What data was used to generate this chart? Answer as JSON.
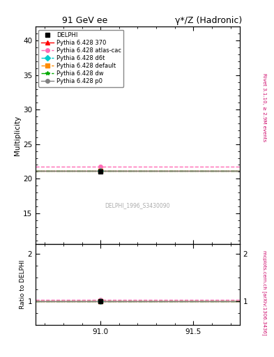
{
  "title_left": "91 GeV ee",
  "title_right": "γ*/Z (Hadronic)",
  "ylabel_main": "Multiplicity",
  "ylabel_ratio": "Ratio to DELPHI",
  "right_label_main": "Rivet 3.1.10, ≥ 2.9M events",
  "right_label_ratio": "mcplots.cern.ch [arXiv:1306.3436]",
  "watermark": "DELPHI_1996_S3430090",
  "xlim": [
    90.65,
    91.75
  ],
  "ylim_main": [
    10.5,
    42
  ],
  "ylim_ratio": [
    0.5,
    2.2
  ],
  "xticks": [
    91.0,
    91.5
  ],
  "yticks_main": [
    15,
    20,
    25,
    30,
    35,
    40
  ],
  "yticks_ratio": [
    1.0,
    2.0
  ],
  "data_x": 91.0,
  "data_y": 21.05,
  "data_yerr": 0.25,
  "lines": [
    {
      "label": "Pythia 6.428 370",
      "y": 21.15,
      "color": "#ff0000",
      "ls": "-",
      "marker": "^",
      "lw": 1.0,
      "ratio": 1.005
    },
    {
      "label": "Pythia 6.428 atlas-cac",
      "y": 21.75,
      "color": "#ff69b4",
      "ls": "--",
      "marker": "o",
      "lw": 1.0,
      "ratio": 1.033
    },
    {
      "label": "Pythia 6.428 d6t",
      "y": 21.15,
      "color": "#00cccc",
      "ls": "--",
      "marker": "D",
      "lw": 1.0,
      "ratio": 1.005
    },
    {
      "label": "Pythia 6.428 default",
      "y": 21.15,
      "color": "#ff8c00",
      "ls": "--",
      "marker": "s",
      "lw": 1.0,
      "ratio": 1.005
    },
    {
      "label": "Pythia 6.428 dw",
      "y": 21.1,
      "color": "#00aa00",
      "ls": "-.",
      "marker": "*",
      "lw": 1.0,
      "ratio": 1.002
    },
    {
      "label": "Pythia 6.428 p0",
      "y": 21.1,
      "color": "#808080",
      "ls": "-",
      "marker": "o",
      "lw": 1.0,
      "ratio": 1.002
    }
  ],
  "background_color": "#ffffff"
}
